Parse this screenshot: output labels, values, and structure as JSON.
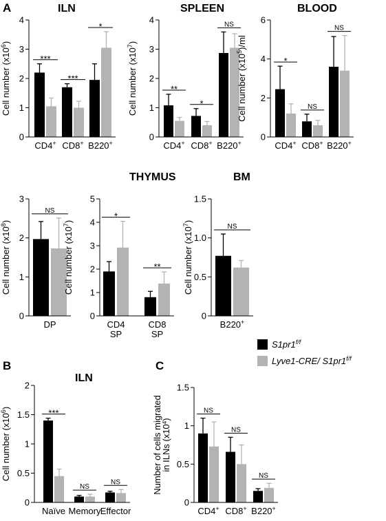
{
  "colors": {
    "wt": "#000000",
    "ko": "#b3b3b3",
    "axis": "#000000"
  },
  "panel_labels": [
    "A",
    "B",
    "C"
  ],
  "legend": {
    "items": [
      {
        "label": "S1pr1",
        "sup": "f/f",
        "color": "#000000"
      },
      {
        "label": "Lyve1-CRE/ S1pr1",
        "sup": "f/f",
        "color": "#b3b3b3"
      }
    ]
  },
  "chart_data": [
    {
      "type": "bar",
      "title": "ILN",
      "ylabel_main": "Cell number (x10",
      "ylabel_sup": "6",
      "ylabel_end": ")",
      "ylim": [
        0,
        4
      ],
      "yticks": [
        "0",
        "1",
        "2",
        "3",
        "4"
      ],
      "categories": [
        {
          "main": "CD4",
          "sup": "+"
        },
        {
          "main": "CD8",
          "sup": "+"
        },
        {
          "main": "B220",
          "sup": "+"
        }
      ],
      "series": [
        {
          "values": [
            2.2,
            1.7,
            1.95
          ],
          "errors": [
            0.3,
            0.12,
            0.55
          ]
        },
        {
          "values": [
            1.05,
            1.0,
            3.05
          ],
          "errors": [
            0.28,
            0.22,
            0.55
          ]
        }
      ],
      "significance": [
        "***",
        "***",
        "*"
      ]
    },
    {
      "type": "bar",
      "title": "SPLEEN",
      "ylabel_main": "Cell number (x10",
      "ylabel_sup": "7",
      "ylabel_end": ")",
      "ylim": [
        0,
        4
      ],
      "yticks": [
        "0",
        "1",
        "2",
        "3",
        "4"
      ],
      "categories": [
        {
          "main": "CD4",
          "sup": "+"
        },
        {
          "main": "CD8",
          "sup": "+"
        },
        {
          "main": "B220",
          "sup": "+"
        }
      ],
      "series": [
        {
          "values": [
            1.08,
            0.72,
            2.87
          ],
          "errors": [
            0.38,
            0.25,
            0.72
          ]
        },
        {
          "values": [
            0.55,
            0.4,
            3.05
          ],
          "errors": [
            0.12,
            0.13,
            0.48
          ]
        }
      ],
      "significance": [
        "**",
        "*",
        "NS"
      ]
    },
    {
      "type": "bar",
      "title": "BLOOD",
      "ylabel_main": "Cell number (x10",
      "ylabel_sup": "5",
      "ylabel_end": ")/ml",
      "ylim": [
        0,
        6
      ],
      "yticks": [
        "0",
        "2",
        "4",
        "6"
      ],
      "categories": [
        {
          "main": "CD4",
          "sup": "+"
        },
        {
          "main": "CD8",
          "sup": "+"
        },
        {
          "main": "B220",
          "sup": "+"
        }
      ],
      "series": [
        {
          "values": [
            2.45,
            0.8,
            3.6
          ],
          "errors": [
            1.18,
            0.37,
            1.55
          ]
        },
        {
          "values": [
            1.2,
            0.6,
            3.4
          ],
          "errors": [
            0.5,
            0.25,
            1.8
          ]
        }
      ],
      "significance": [
        "*",
        "NS",
        "NS"
      ]
    },
    {
      "type": "bar",
      "title": "",
      "ylabel_main": "Cell number (x10",
      "ylabel_sup": "8",
      "ylabel_end": ")",
      "ylim": [
        0,
        3
      ],
      "yticks": [
        "0",
        "1",
        "2",
        "3"
      ],
      "categories": [
        {
          "main": "DP",
          "sup": ""
        }
      ],
      "series": [
        {
          "values": [
            1.97
          ],
          "errors": [
            0.45
          ]
        },
        {
          "values": [
            1.73
          ],
          "errors": [
            0.78
          ]
        }
      ],
      "significance": [
        "NS"
      ]
    },
    {
      "type": "bar",
      "title": "THYMUS",
      "ylabel_main": "Cell number (x10",
      "ylabel_sup": "7",
      "ylabel_end": ")",
      "ylim": [
        0,
        5
      ],
      "yticks": [
        "0",
        "1",
        "2",
        "3",
        "4",
        "5"
      ],
      "categories": [
        {
          "main": "CD4",
          "line2": "SP",
          "sup": ""
        },
        {
          "main": "CD8",
          "line2": "SP",
          "sup": ""
        }
      ],
      "series": [
        {
          "values": [
            1.9,
            0.8
          ],
          "errors": [
            0.42,
            0.25
          ]
        },
        {
          "values": [
            2.92,
            1.38
          ],
          "errors": [
            1.12,
            0.5
          ]
        }
      ],
      "significance": [
        "*",
        "**"
      ]
    },
    {
      "type": "bar",
      "title": "BM",
      "ylabel_main": "Cell number (x10",
      "ylabel_sup": "7",
      "ylabel_end": ")",
      "ylim": [
        0,
        1.5
      ],
      "yticks": [
        "0",
        "0.5",
        "1.0",
        "1.5"
      ],
      "categories": [
        {
          "main": "B220",
          "sup": "+"
        }
      ],
      "series": [
        {
          "values": [
            0.77
          ],
          "errors": [
            0.28
          ]
        },
        {
          "values": [
            0.62
          ],
          "errors": [
            0.09
          ]
        }
      ],
      "significance": [
        "NS"
      ]
    },
    {
      "type": "bar",
      "title": "ILN",
      "ylabel_main": "Cell number (x10",
      "ylabel_sup": "6",
      "ylabel_end": ")",
      "ylim": [
        0,
        2
      ],
      "yticks": [
        "0",
        "0.5",
        "1",
        "1.5",
        "2"
      ],
      "categories": [
        {
          "main": "Naïve",
          "sup": ""
        },
        {
          "main": "Memory",
          "sup": ""
        },
        {
          "main": "Effector",
          "sup": ""
        }
      ],
      "series": [
        {
          "values": [
            1.4,
            0.1,
            0.17
          ],
          "errors": [
            0.04,
            0.02,
            0.02
          ]
        },
        {
          "values": [
            0.45,
            0.1,
            0.16
          ],
          "errors": [
            0.12,
            0.04,
            0.06
          ]
        }
      ],
      "significance": [
        "***",
        "NS",
        "NS"
      ]
    },
    {
      "type": "bar",
      "title": "",
      "ylabel_main": "Number of cells migrated",
      "ylabel_line2_main": "in ILNs (x10",
      "ylabel_sup": "4",
      "ylabel_end": ")",
      "ylim": [
        0,
        1.5
      ],
      "yticks": [
        "0",
        "0.5",
        "1",
        "1.5"
      ],
      "categories": [
        {
          "main": "CD4",
          "sup": "+"
        },
        {
          "main": "CD8",
          "sup": "+"
        },
        {
          "main": "B220",
          "sup": "+"
        }
      ],
      "series": [
        {
          "values": [
            0.9,
            0.66,
            0.15
          ],
          "errors": [
            0.2,
            0.19,
            0.03
          ]
        },
        {
          "values": [
            0.73,
            0.5,
            0.19
          ],
          "errors": [
            0.32,
            0.25,
            0.06
          ]
        }
      ],
      "significance": [
        "NS",
        "NS",
        "NS"
      ]
    }
  ]
}
